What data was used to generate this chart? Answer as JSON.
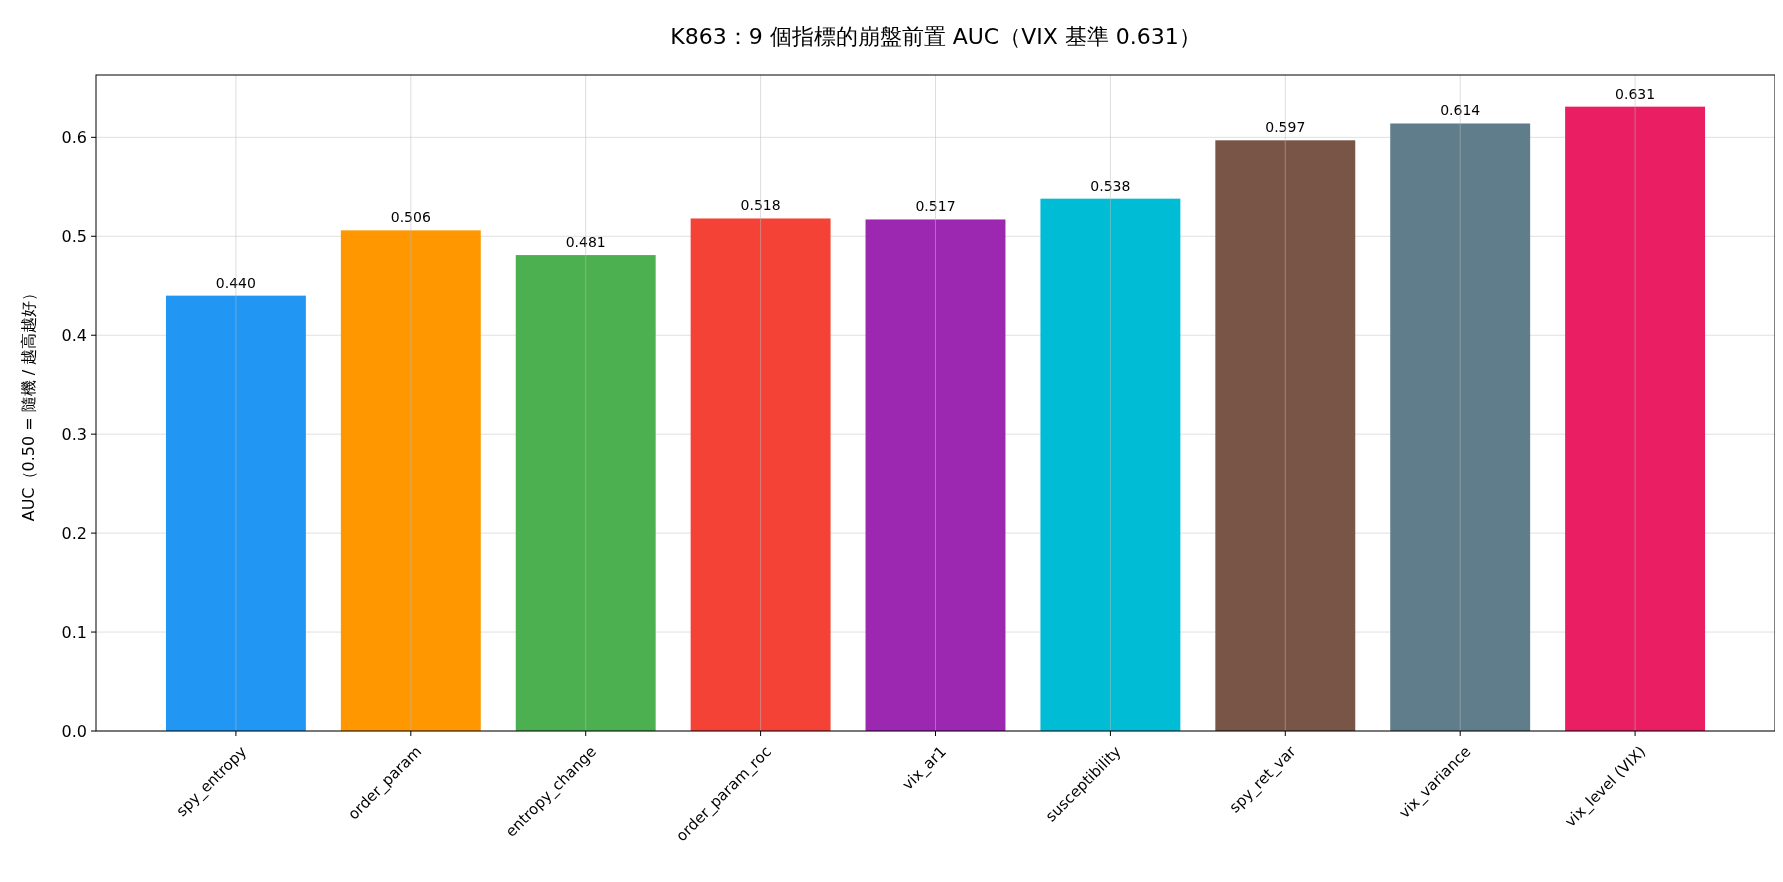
{
  "chart_data": {
    "type": "bar",
    "title": "K863：9 個指標的崩盤前置 AUC（VIX 基準 0.631）",
    "ylabel": "AUC（0.50 = 隨機 / 越高越好）",
    "categories": [
      "spy_entropy",
      "order_param",
      "entropy_change",
      "order_param_roc",
      "vix_ar1",
      "susceptibility",
      "spy_ret_var",
      "vix_variance",
      "vix_level (VIX)"
    ],
    "values": [
      0.44,
      0.506,
      0.481,
      0.518,
      0.517,
      0.538,
      0.597,
      0.614,
      0.631
    ],
    "colors": [
      "#2196f3",
      "#ff9800",
      "#4caf50",
      "#f44336",
      "#9c27b0",
      "#00bcd4",
      "#795548",
      "#607d8b",
      "#e91e63"
    ],
    "ylim": [
      0,
      0.663
    ],
    "yticks": [
      {
        "value": 0,
        "label": "0.0"
      },
      0.1,
      0.2,
      0.3,
      0.4,
      0.5,
      0.6
    ],
    "value_labels": [
      "0.440",
      "0.506",
      "0.481",
      "0.518",
      "0.517",
      "0.538",
      "0.597",
      "0.614",
      "0.631"
    ],
    "grid": true
  }
}
